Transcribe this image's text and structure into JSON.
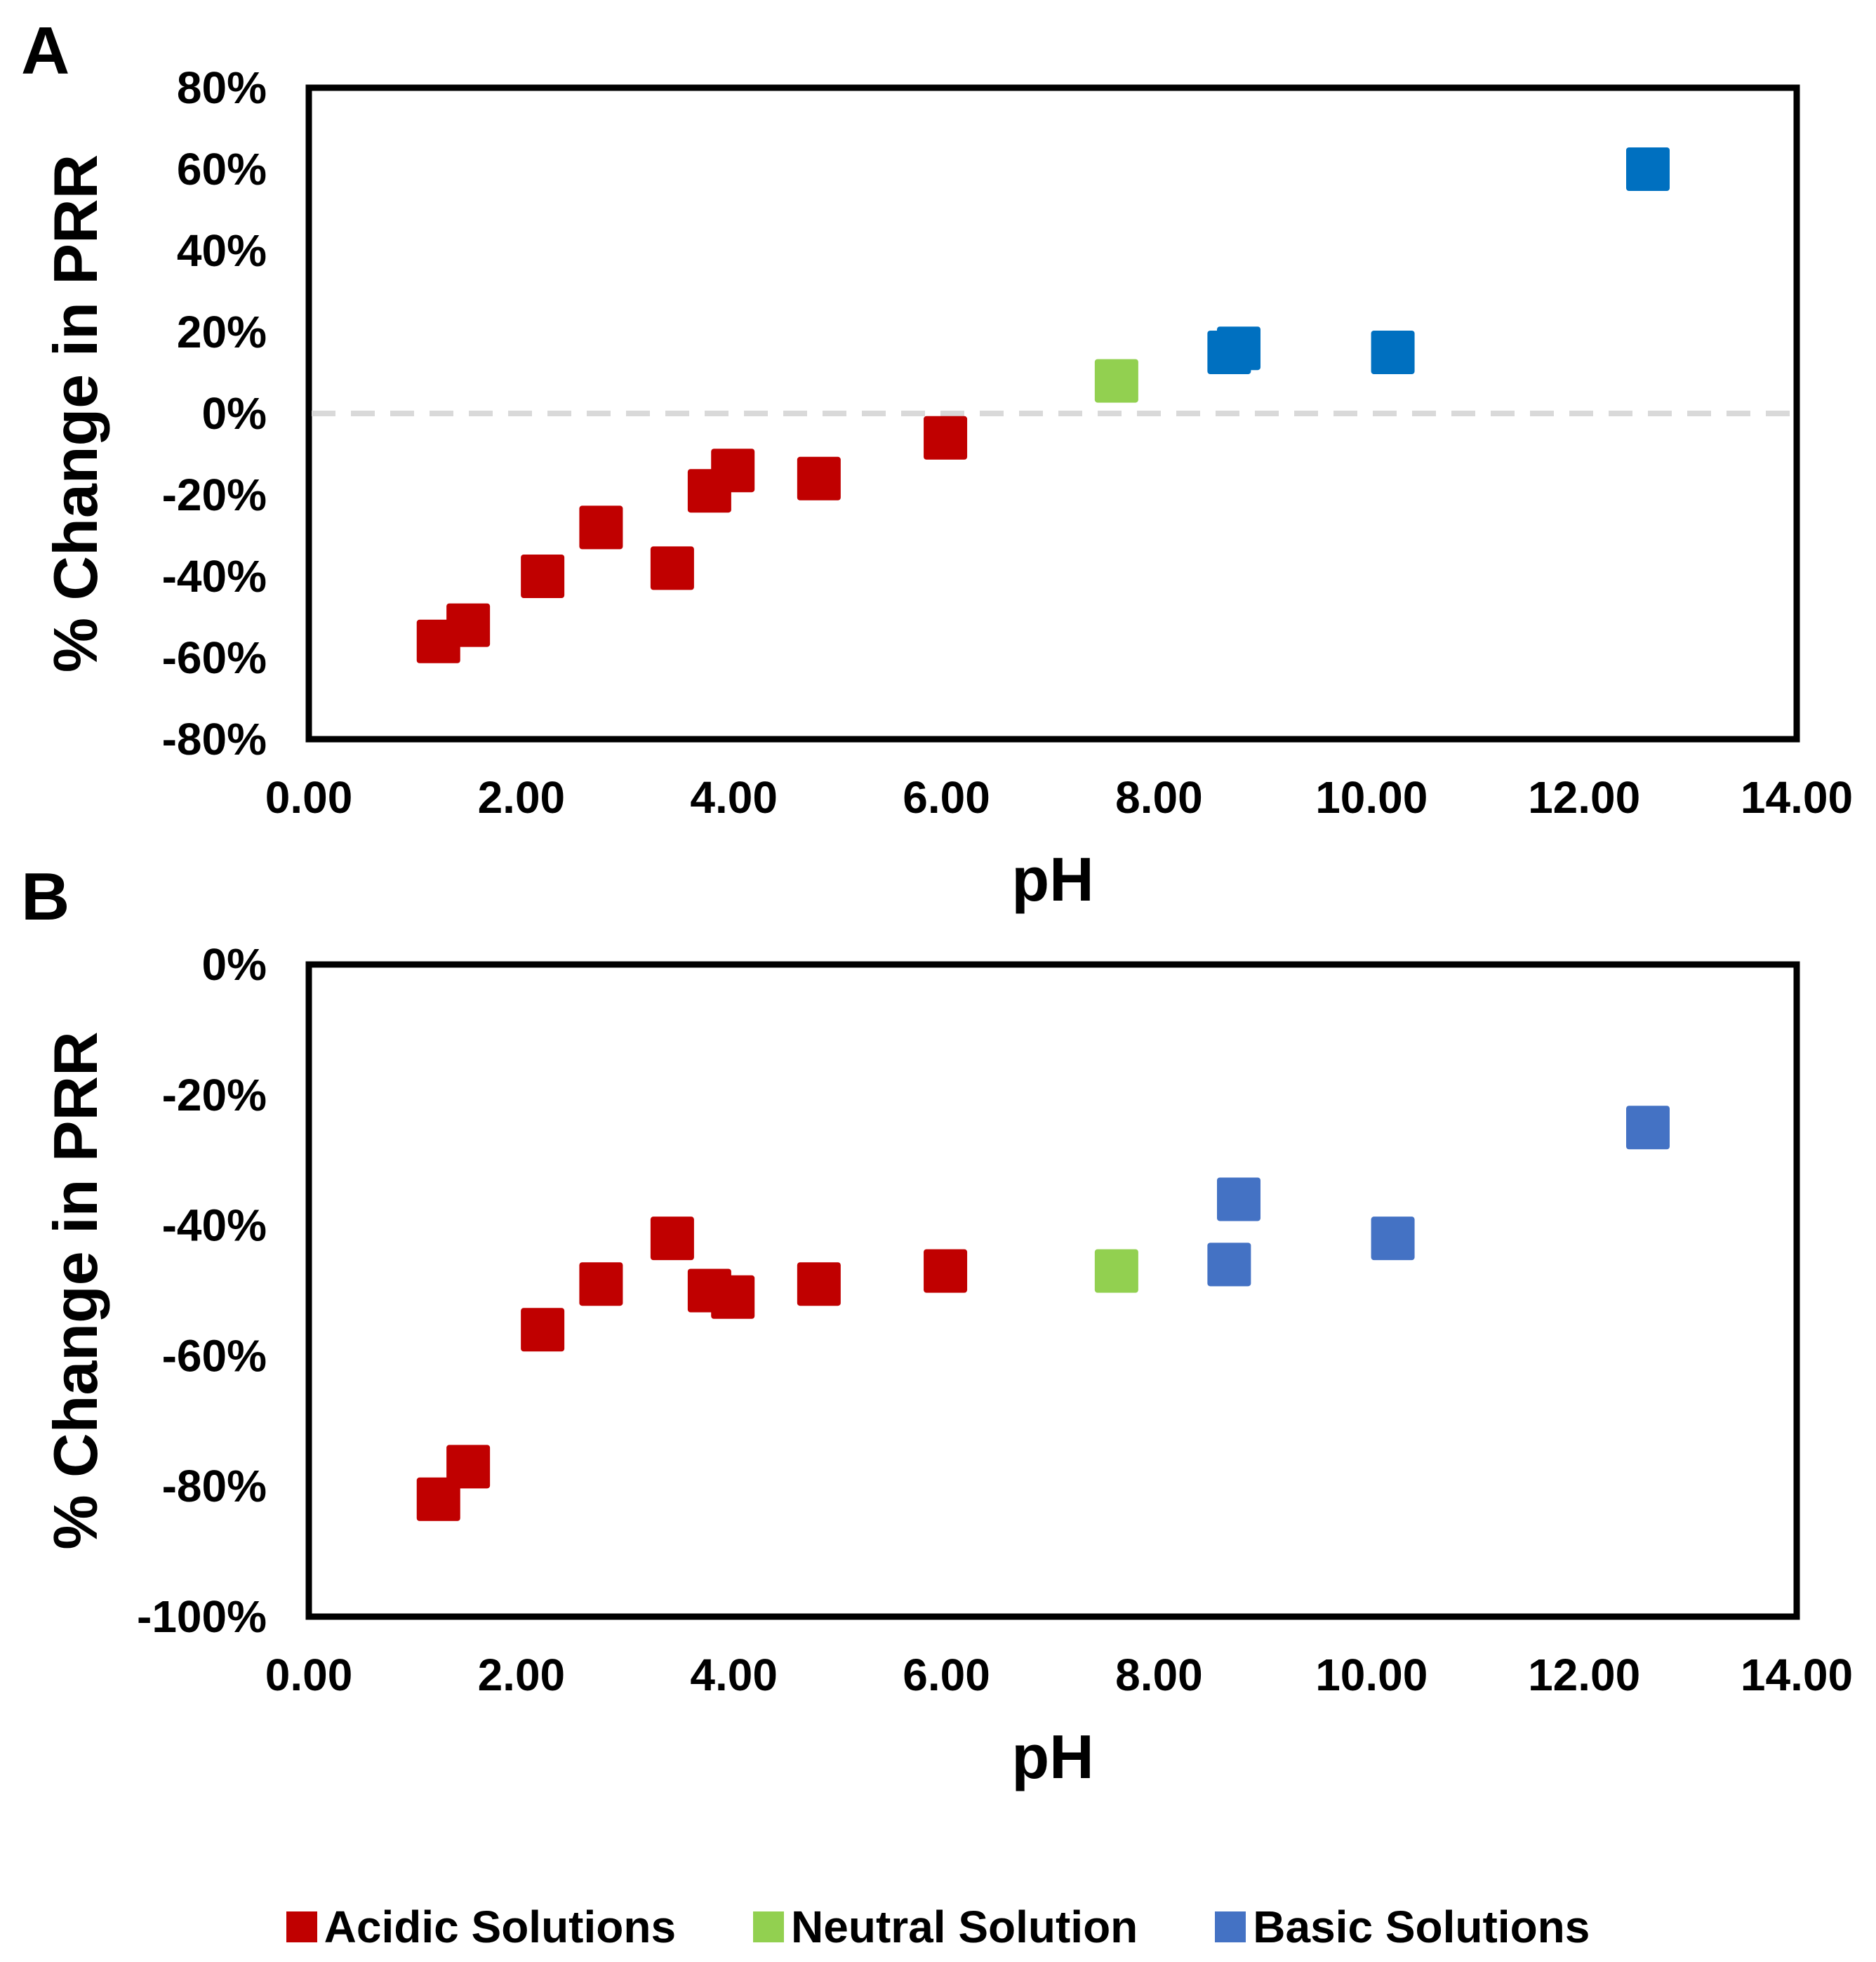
{
  "colors": {
    "acidic": "#C00000",
    "neutral": "#92D050",
    "basic_a": "#0070C0",
    "basic_b": "#4472C4",
    "zero_line": "#D9D9D9"
  },
  "legend": {
    "items": [
      {
        "label": "Acidic Solutions",
        "color": "#C00000"
      },
      {
        "label": "Neutral Solution",
        "color": "#92D050"
      },
      {
        "label": "Basic Solutions",
        "color": "#4472C4"
      }
    ]
  },
  "chart_data": [
    {
      "panel": "A",
      "type": "scatter",
      "xlabel": "pH",
      "ylabel": "% Change in PRR",
      "xlim": [
        0,
        14
      ],
      "ylim": [
        -80,
        80
      ],
      "x_ticks": [
        "0.00",
        "2.00",
        "4.00",
        "6.00",
        "8.00",
        "10.00",
        "12.00",
        "14.00"
      ],
      "y_ticks": [
        "80%",
        "60%",
        "40%",
        "20%",
        "0%",
        "-20%",
        "-40%",
        "-60%",
        "-80%"
      ],
      "reference_line": {
        "y": 0,
        "style": "dashed"
      },
      "series": [
        {
          "name": "Acidic Solutions",
          "color": "#C00000",
          "x": [
            1.22,
            1.5,
            2.2,
            2.75,
            3.42,
            3.77,
            3.99,
            4.8,
            5.99
          ],
          "y": [
            -56,
            -52,
            -40,
            -28,
            -38,
            -19,
            -14,
            -16,
            -6
          ]
        },
        {
          "name": "Neutral Solution",
          "color": "#92D050",
          "x": [
            7.6
          ],
          "y": [
            8
          ]
        },
        {
          "name": "Basic Solutions",
          "color": "#0070C0",
          "x": [
            8.66,
            8.75,
            10.2,
            12.6
          ],
          "y": [
            15,
            16,
            15,
            60
          ]
        }
      ]
    },
    {
      "panel": "B",
      "type": "scatter",
      "xlabel": "pH",
      "ylabel": "% Change in PRR",
      "xlim": [
        0,
        14
      ],
      "ylim": [
        -100,
        0
      ],
      "x_ticks": [
        "0.00",
        "2.00",
        "4.00",
        "6.00",
        "8.00",
        "10.00",
        "12.00",
        "14.00"
      ],
      "y_ticks": [
        "0%",
        "-20%",
        "-40%",
        "-60%",
        "-80%",
        "-100%"
      ],
      "series": [
        {
          "name": "Acidic Solutions",
          "color": "#C00000",
          "x": [
            1.22,
            1.5,
            2.2,
            2.75,
            3.42,
            3.77,
            3.99,
            4.8,
            5.99
          ],
          "y": [
            -82,
            -77,
            -56,
            -49,
            -42,
            -50,
            -51,
            -49,
            -47
          ]
        },
        {
          "name": "Neutral Solution",
          "color": "#92D050",
          "x": [
            7.6
          ],
          "y": [
            -47
          ]
        },
        {
          "name": "Basic Solutions",
          "color": "#4472C4",
          "x": [
            8.66,
            8.75,
            10.2,
            12.6
          ],
          "y": [
            -46,
            -36,
            -42,
            -25
          ]
        }
      ]
    }
  ]
}
